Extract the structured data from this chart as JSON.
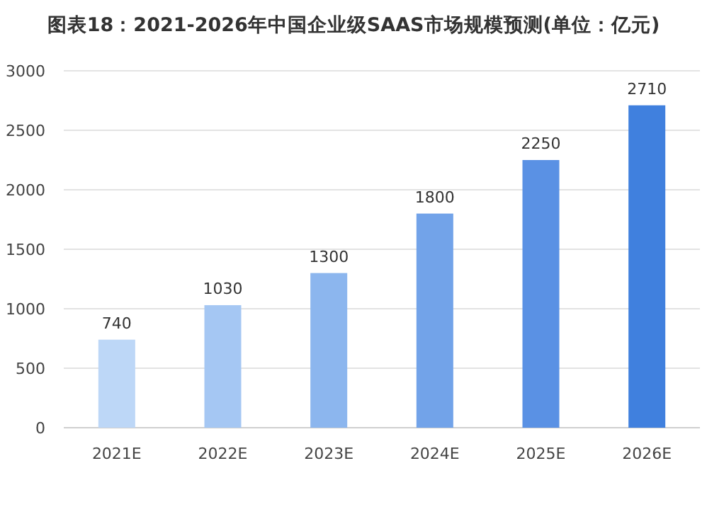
{
  "chart_data": {
    "type": "bar",
    "title": "图表18：2021-2026年中国企业级SAAS市场规模预测(单位：亿元)",
    "categories": [
      "2021E",
      "2022E",
      "2023E",
      "2024E",
      "2025E",
      "2026E"
    ],
    "values": [
      740,
      1030,
      1300,
      1800,
      2250,
      2710
    ],
    "colors": [
      "#bdd7f7",
      "#a5c7f3",
      "#8cb6ee",
      "#72a3e9",
      "#5a91e4",
      "#4080de"
    ],
    "ylim": [
      0,
      3000
    ],
    "yticks": [
      0,
      500,
      1000,
      1500,
      2000,
      2500,
      3000
    ],
    "grid": "y",
    "data_labels": true
  }
}
